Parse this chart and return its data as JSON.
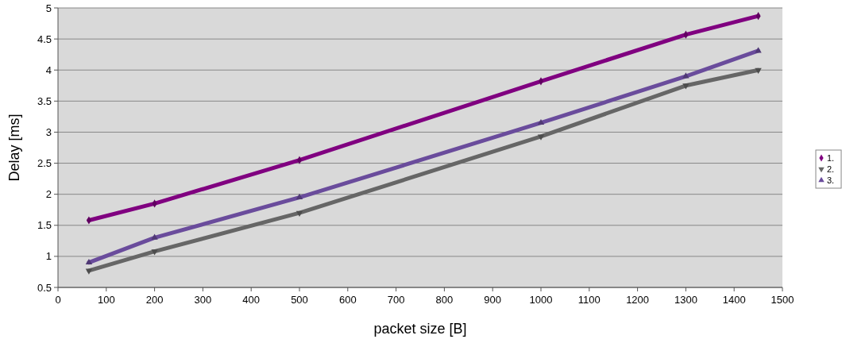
{
  "chart_data": {
    "type": "line",
    "xlabel": "packet size [B]",
    "ylabel": "Delay [ms]",
    "x": [
      64,
      200,
      500,
      1000,
      1300,
      1450
    ],
    "series": [
      {
        "name": "1.",
        "color": "#800080",
        "marker": "diamond",
        "values": [
          1.58,
          1.85,
          2.55,
          3.82,
          4.57,
          4.87
        ]
      },
      {
        "name": "2.",
        "color": "#666666",
        "marker": "triangle-down",
        "values": [
          0.77,
          1.08,
          1.7,
          2.93,
          3.75,
          4.0
        ]
      },
      {
        "name": "3.",
        "color": "#6a4c9c",
        "marker": "triangle",
        "values": [
          0.9,
          1.3,
          1.95,
          3.15,
          3.9,
          4.31
        ]
      }
    ],
    "xlim": [
      0,
      1500
    ],
    "xticks": [
      0,
      100,
      200,
      300,
      400,
      500,
      600,
      700,
      800,
      900,
      1000,
      1100,
      1200,
      1300,
      1400,
      1500
    ],
    "ylim": [
      0.5,
      5
    ],
    "yticks": [
      0.5,
      1,
      1.5,
      2,
      2.5,
      3,
      3.5,
      4,
      4.5,
      5
    ],
    "grid": "y",
    "legend": "right"
  }
}
